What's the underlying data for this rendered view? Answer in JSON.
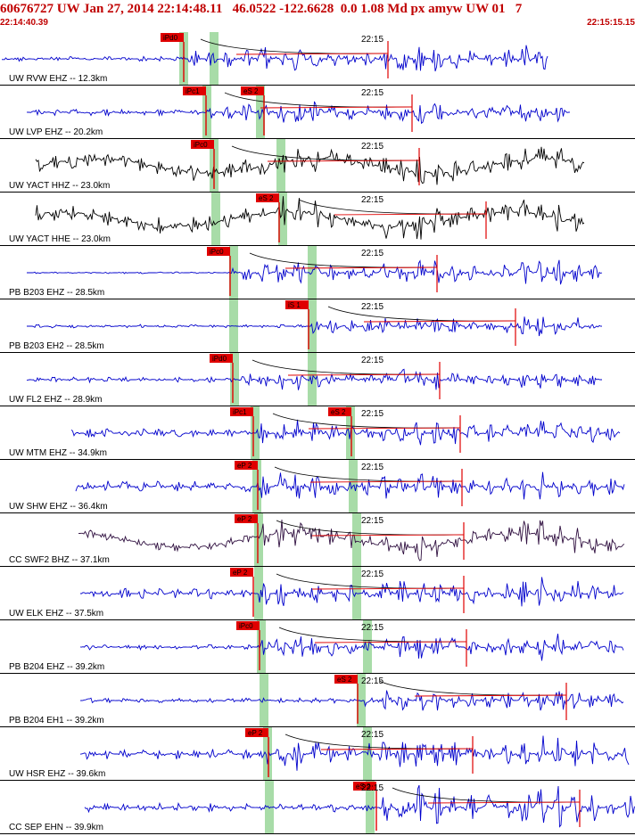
{
  "header": {
    "title": "60676727 UW Jan 27, 2014 22:14:48.11   46.0522 -122.6628  0.0 1.08 Md px amyw UW 01   7",
    "start_time": "22:14:40.39",
    "end_time": "22:15:15.15"
  },
  "colors": {
    "header_text": "#c00000",
    "trace_blue": "#0000cc",
    "trace_black": "#000000",
    "trace_purple": "#301040",
    "pick_red": "#e00000",
    "window_green": "#a8dca8"
  },
  "time_marker": "22:15",
  "traces": [
    {
      "label": "UW RVW EHZ -- 12.3km",
      "color": "blue",
      "picks": [
        "iPd0"
      ]
    },
    {
      "label": "UW LVP EHZ -- 20.2km",
      "color": "blue",
      "picks": [
        "iPc1",
        "eS 2"
      ]
    },
    {
      "label": "UW YACT HHZ -- 23.0km",
      "color": "black",
      "picks": [
        "iPc0"
      ]
    },
    {
      "label": "UW YACT HHE -- 23.0km",
      "color": "black",
      "picks": [
        "eS 2"
      ]
    },
    {
      "label": "PB B203 EHZ -- 28.5km",
      "color": "blue",
      "picks": [
        "iPc0"
      ]
    },
    {
      "label": "PB B203 EH2 -- 28.5km",
      "color": "blue",
      "picks": [
        "iS 1"
      ]
    },
    {
      "label": "UW FL2 EHZ -- 28.9km",
      "color": "blue",
      "picks": [
        "iPd0"
      ]
    },
    {
      "label": "UW MTM EHZ -- 34.9km",
      "color": "blue",
      "picks": [
        "iPc1",
        "eS 2"
      ]
    },
    {
      "label": "UW SHW EHZ -- 36.4km",
      "color": "blue",
      "picks": [
        "eP 2"
      ]
    },
    {
      "label": "CC SWF2 BHZ -- 37.1km",
      "color": "purple",
      "picks": [
        "eP 2"
      ]
    },
    {
      "label": "UW ELK EHZ -- 37.5km",
      "color": "blue",
      "picks": [
        "eP 2"
      ]
    },
    {
      "label": "PB B204 EHZ -- 39.2km",
      "color": "blue",
      "picks": [
        "iPc0"
      ]
    },
    {
      "label": "PB B204 EH1 -- 39.2km",
      "color": "blue",
      "picks": [
        "eS 2"
      ]
    },
    {
      "label": "UW HSR EHZ -- 39.6km",
      "color": "blue",
      "picks": [
        "eP 2"
      ]
    },
    {
      "label": "CC SEP EHN -- 39.9km",
      "color": "blue",
      "picks": [
        "eS 2"
      ]
    }
  ]
}
